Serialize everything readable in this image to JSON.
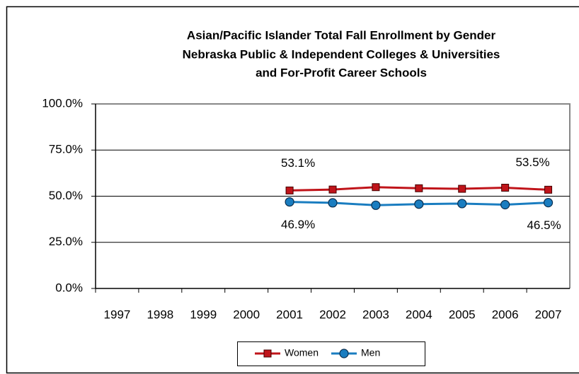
{
  "chart_data": {
    "type": "line",
    "title": [
      "Asian/Pacific Islander Total Fall Enrollment by Gender",
      "Nebraska Public & Independent Colleges & Universities",
      "and For-Profit Career Schools"
    ],
    "categories": [
      "1997",
      "1998",
      "1999",
      "2000",
      "2001",
      "2002",
      "2003",
      "2004",
      "2005",
      "2006",
      "2007"
    ],
    "series": [
      {
        "name": "Women",
        "color": "#c0141a",
        "marker": "square",
        "values": [
          null,
          null,
          null,
          null,
          53.1,
          53.6,
          54.9,
          54.3,
          54.0,
          54.6,
          53.5
        ],
        "value_labels": [
          null,
          null,
          null,
          null,
          "53.1%",
          null,
          null,
          null,
          null,
          null,
          "53.5%"
        ]
      },
      {
        "name": "Men",
        "color": "#1a7dc0",
        "marker": "circle",
        "values": [
          null,
          null,
          null,
          null,
          46.9,
          46.4,
          45.1,
          45.7,
          46.0,
          45.4,
          46.5
        ],
        "value_labels": [
          null,
          null,
          null,
          null,
          "46.9%",
          null,
          null,
          null,
          null,
          null,
          "46.5%"
        ]
      }
    ],
    "ylim": [
      0,
      100
    ],
    "yticks": [
      {
        "value": 0,
        "label": "0.0%"
      },
      {
        "value": 25,
        "label": "25.0%"
      },
      {
        "value": 50,
        "label": "50.0%"
      },
      {
        "value": 75,
        "label": "75.0%"
      },
      {
        "value": 100,
        "label": "100.0%"
      }
    ],
    "grid": true,
    "legend": "bottom"
  }
}
